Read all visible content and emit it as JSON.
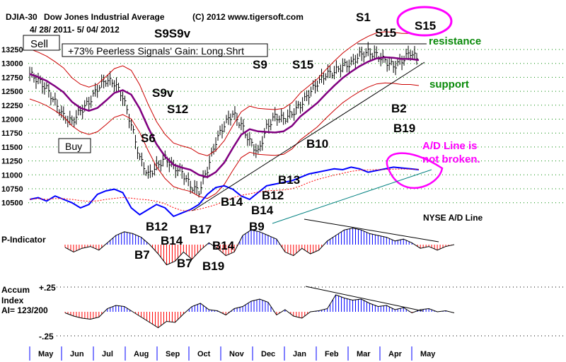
{
  "header": {
    "symbol": "DJIA-30",
    "name": "Dow Jones Industrial Average",
    "copyright": "(C) 2012 www.tigersoft.com",
    "date_range": "4/ 28/ 2011- 5/ 04/ 2012"
  },
  "boxes": {
    "sell": "Sell",
    "buy": "Buy",
    "gain": "+73% Peerless Signals' Gain: Long.Shrt"
  },
  "notes": {
    "resistance": "resistance",
    "support": "support",
    "ad1": "A/D Line is",
    "ad2": "not broken.",
    "nyse": "NYSE A/D Line"
  },
  "panels": {
    "p_indicator": "P-Indicator",
    "accum1": "Accum",
    "accum2": "Index",
    "ai": "AI= 123/200",
    "plus": "+.25",
    "minus": "-.25"
  },
  "signals": [
    "S9S9v",
    "S9v",
    "S12",
    "S6",
    "S9",
    "S15",
    "S1",
    "S15",
    "S15",
    "B2",
    "B19",
    "B10",
    "B13",
    "B12",
    "B14",
    "B14",
    "B9",
    "B12",
    "B14",
    "B7",
    "B17",
    "B14",
    "B7",
    "B19"
  ],
  "colors": {
    "price": "#000000",
    "ma": "#800080",
    "band": "#cc0000",
    "ad": "#0000ff",
    "pos": "#0000ff",
    "neg": "#ff0000",
    "mag": "#ff00ff",
    "green": "#0a8a0a"
  },
  "chart_data": {
    "type": "line",
    "title": "DJIA-30 Dow Jones Industrial Average",
    "ylim": [
      10500,
      13250
    ],
    "yticks": [
      13250,
      13000,
      12750,
      12500,
      12250,
      12000,
      11750,
      11500,
      11250,
      11000,
      10750,
      10500
    ],
    "months": [
      "May",
      "Jun",
      "Jul",
      "Aug",
      "Sep",
      "Oct",
      "Nov",
      "Dec",
      "Jan",
      "Feb",
      "Mar",
      "Apr",
      "May"
    ],
    "price": [
      12810,
      12700,
      12550,
      12300,
      12050,
      11950,
      12150,
      12300,
      12550,
      12700,
      12650,
      12400,
      11900,
      11300,
      11000,
      11150,
      11300,
      11150,
      11050,
      10800,
      10700,
      11100,
      11600,
      11900,
      12100,
      11900,
      11600,
      11400,
      11850,
      12050,
      12000,
      12100,
      12250,
      12450,
      12650,
      12800,
      12850,
      12950,
      13000,
      13150,
      13200,
      13150,
      13050,
      12950,
      13050,
      13200,
      13050
    ],
    "ad_line": [
      40,
      42,
      38,
      44,
      40,
      36,
      30,
      34,
      46,
      50,
      52,
      48,
      30,
      22,
      28,
      34,
      30,
      20,
      24,
      28,
      34,
      46,
      54,
      56,
      52,
      44,
      40,
      48,
      56,
      58,
      60,
      62,
      66,
      70,
      72,
      74,
      76,
      75,
      78,
      76,
      72,
      74,
      76,
      78,
      77,
      76,
      75
    ],
    "p_indicator": [
      -3,
      -8,
      -4,
      -2,
      -6,
      2,
      10,
      14,
      12,
      8,
      0,
      -10,
      -22,
      -18,
      -8,
      -16,
      -6,
      2,
      -4,
      -12,
      -8,
      10,
      16,
      14,
      10,
      6,
      -8,
      -12,
      -4,
      -10,
      -6,
      4,
      10,
      16,
      18,
      16,
      12,
      10,
      8,
      4,
      6,
      2,
      -4,
      -2,
      -6,
      -2,
      0
    ],
    "accum_index": [
      -0.01,
      -0.04,
      -0.06,
      -0.07,
      -0.05,
      0.03,
      0.06,
      0.05,
      0.0,
      -0.05,
      -0.1,
      -0.15,
      -0.09,
      -0.1,
      -0.02,
      0.05,
      0.08,
      0.02,
      0.01,
      -0.03,
      0.03,
      0.05,
      0.1,
      0.12,
      0.09,
      -0.03,
      0.02,
      -0.04,
      -0.06,
      0.0,
      0.01,
      0.03,
      0.16,
      0.13,
      0.11,
      0.12,
      0.08,
      0.05,
      0.06,
      0.02,
      0.04,
      -0.01,
      0.02,
      0.03,
      0.0,
      0.01,
      -0.01
    ]
  }
}
